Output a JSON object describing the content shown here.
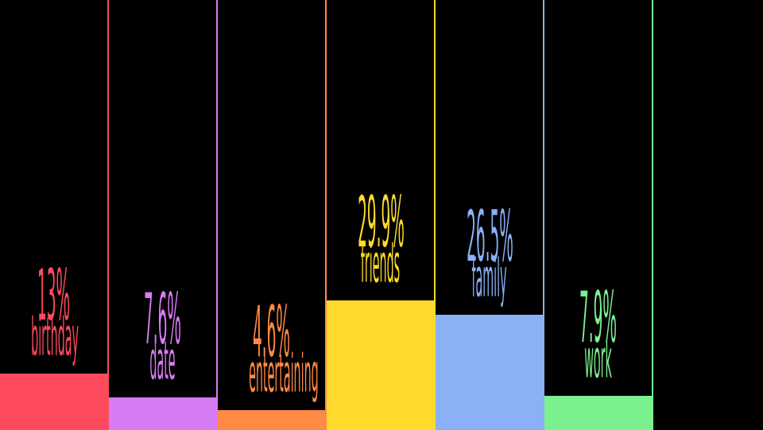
{
  "chart_data": {
    "type": "bar",
    "categories": [
      "birthday",
      "date",
      "entertaining",
      "friends",
      "family",
      "work"
    ],
    "values": [
      13,
      7.6,
      4.6,
      29.9,
      26.5,
      7.9
    ],
    "value_labels": [
      "13%",
      "7.6%",
      "4.6%",
      "29.9%",
      "26.5%",
      "7.9%"
    ],
    "colors": [
      "#FF4A5E",
      "#D77BF2",
      "#FF8A45",
      "#FFDA2A",
      "#8AB0F5",
      "#7BF08E"
    ],
    "title": "",
    "xlabel": "",
    "ylabel": "",
    "grid": false,
    "legend": "none"
  }
}
